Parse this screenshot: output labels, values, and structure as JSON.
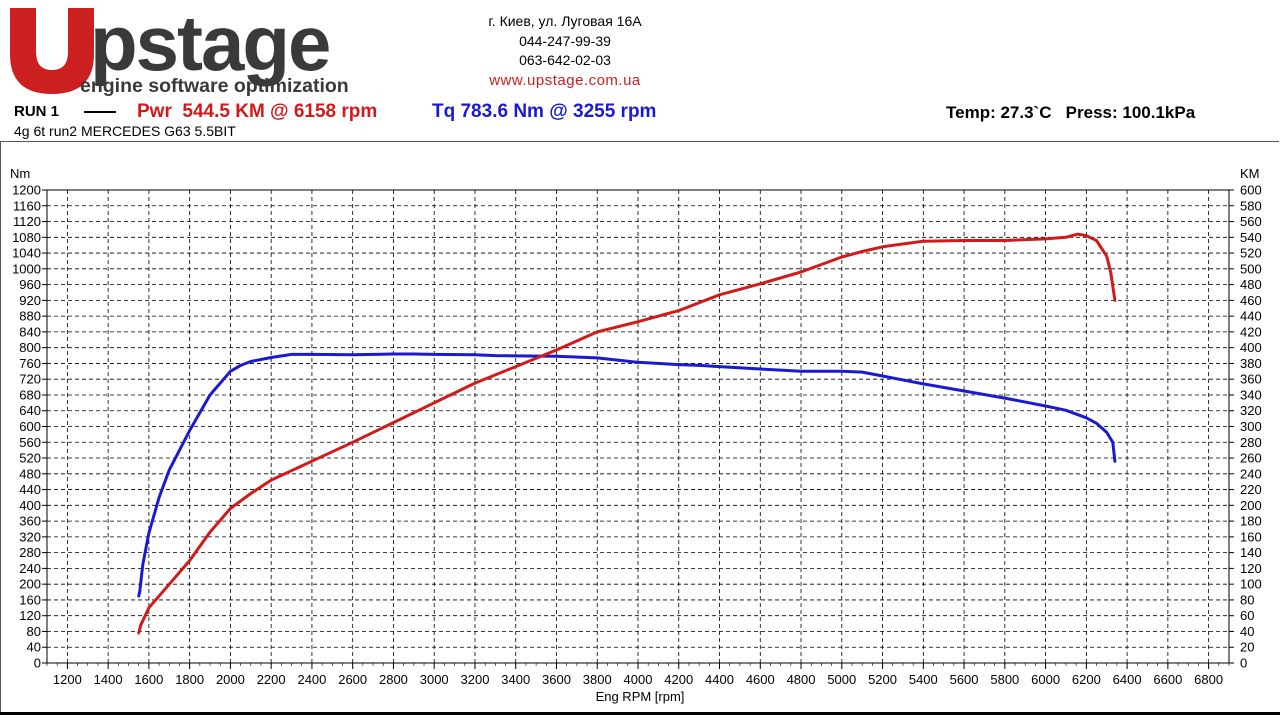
{
  "header": {
    "logo_text": "Upstage",
    "logo_tagline": "engine software optimization",
    "address": "г. Киев, ул. Луговая 16А",
    "phone1": "044-247-99-39",
    "phone2": "063-642-02-03",
    "website": "www.upstage.com.ua",
    "run_label": "RUN 1",
    "power_summary": "Pwr  544.5 KM @ 6158 rpm",
    "torque_summary": "Tq 783.6 Nm @ 3255 rpm",
    "environment": "Temp: 27.3`C   Press: 100.1kPa",
    "run_name": "4g 6t run2 MERCEDES G63 5.5BIT"
  },
  "colors": {
    "power": "#d21a1a",
    "torque": "#1a1ad2",
    "brand_red": "#cc1f1f",
    "brand_dark": "#3a3a3a"
  },
  "chart_data": {
    "type": "line",
    "title": "",
    "xlabel": "Eng RPM [rpm]",
    "ylabel_left": "Nm",
    "ylabel_right": "KM",
    "xlim": [
      1100,
      6900
    ],
    "ylim_left": [
      0,
      1200
    ],
    "ylim_right": [
      0,
      600
    ],
    "x_ticks": [
      1200,
      1400,
      1600,
      1800,
      2000,
      2200,
      2400,
      2600,
      2800,
      3000,
      3200,
      3400,
      3600,
      3800,
      4000,
      4200,
      4400,
      4600,
      4800,
      5000,
      5200,
      5400,
      5600,
      5800,
      6000,
      6200,
      6400,
      6600,
      6800
    ],
    "y_left_ticks": [
      0,
      40,
      80,
      120,
      160,
      200,
      240,
      280,
      320,
      360,
      400,
      440,
      480,
      520,
      560,
      600,
      640,
      680,
      720,
      760,
      800,
      840,
      880,
      920,
      960,
      1000,
      1040,
      1080,
      1120,
      1160,
      1200
    ],
    "y_right_ticks": [
      0,
      20,
      40,
      60,
      80,
      100,
      120,
      140,
      160,
      180,
      200,
      220,
      240,
      260,
      280,
      300,
      320,
      340,
      360,
      380,
      400,
      420,
      440,
      460,
      480,
      500,
      520,
      540,
      560,
      580,
      600
    ],
    "grid": true,
    "series": [
      {
        "name": "Tq",
        "axis": "left",
        "color": "#1a1ad2",
        "x": [
          1550,
          1555,
          1570,
          1600,
          1650,
          1700,
          1800,
          1900,
          2000,
          2050,
          2100,
          2200,
          2300,
          2400,
          2600,
          2800,
          2900,
          3000,
          3200,
          3300,
          3400,
          3600,
          3800,
          4000,
          4200,
          4300,
          4400,
          4600,
          4800,
          5000,
          5100,
          5200,
          5400,
          5600,
          5800,
          6000,
          6100,
          6200,
          6250,
          6300,
          6330,
          6340
        ],
        "y": [
          170,
          180,
          250,
          330,
          420,
          490,
          590,
          680,
          740,
          755,
          765,
          775,
          783,
          783,
          782,
          784,
          784,
          783,
          782,
          780,
          779,
          778,
          774,
          763,
          757,
          755,
          752,
          746,
          740,
          740,
          738,
          728,
          708,
          690,
          672,
          652,
          641,
          622,
          608,
          585,
          560,
          512
        ]
      },
      {
        "name": "Pwr",
        "axis": "right",
        "color": "#d21a1a",
        "x": [
          1550,
          1560,
          1600,
          1700,
          1800,
          1900,
          2000,
          2100,
          2200,
          2400,
          2600,
          2800,
          3000,
          3200,
          3400,
          3600,
          3800,
          4000,
          4200,
          4400,
          4600,
          4800,
          5000,
          5100,
          5200,
          5400,
          5600,
          5800,
          6000,
          6100,
          6158,
          6200,
          6250,
          6300,
          6320,
          6340
        ],
        "y": [
          38,
          48,
          70,
          100,
          130,
          166,
          196,
          215,
          232,
          256,
          280,
          305,
          330,
          355,
          376,
          397,
          420,
          433,
          447,
          467,
          481,
          496,
          515,
          522,
          528,
          535,
          536,
          536,
          538,
          540,
          544,
          542,
          536,
          516,
          495,
          460
        ]
      }
    ]
  }
}
